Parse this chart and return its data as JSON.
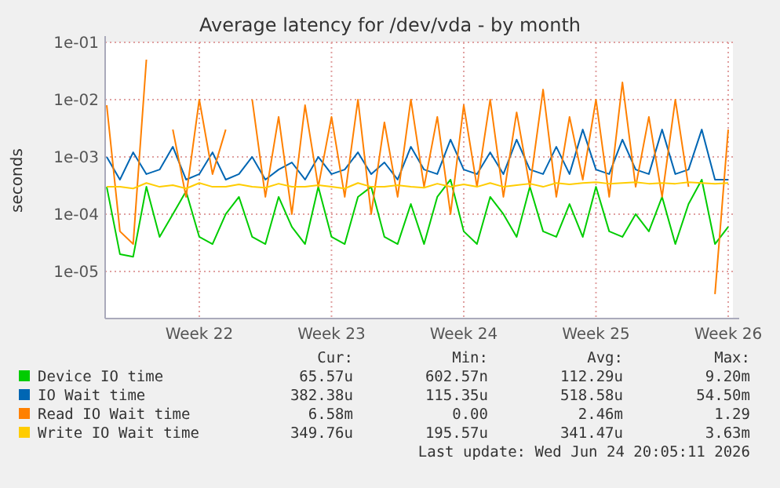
{
  "chart_data": {
    "type": "line",
    "title": "Average latency for /dev/vda - by month",
    "ylabel": "seconds",
    "log": true,
    "grid": true,
    "legend": "bottom",
    "marker": "none",
    "line_style": "solid",
    "ylim": [
      1.5e-06,
      0.1
    ],
    "yticks": [
      {
        "value": 0.1,
        "label": "1e-01"
      },
      {
        "value": 0.01,
        "label": "1e-02"
      },
      {
        "value": 0.001,
        "label": "1e-03"
      },
      {
        "value": 0.0001,
        "label": "1e-04"
      },
      {
        "value": 1e-05,
        "label": "1e-05"
      }
    ],
    "categories": [
      null,
      null,
      null,
      null,
      null,
      null,
      null,
      "Week 22",
      null,
      null,
      null,
      null,
      null,
      null,
      null,
      null,
      null,
      "Week 23",
      null,
      null,
      null,
      null,
      null,
      null,
      null,
      null,
      null,
      "Week 24",
      null,
      null,
      null,
      null,
      null,
      null,
      null,
      null,
      null,
      "Week 25",
      null,
      null,
      null,
      null,
      null,
      null,
      null,
      null,
      null,
      "Week 26"
    ],
    "series": [
      {
        "name": "Device IO time",
        "color": "#00cc00",
        "values": [
          0.0003,
          2e-05,
          1.8e-05,
          0.0003,
          4e-05,
          0.0001,
          0.00025,
          4e-05,
          3e-05,
          0.0001,
          0.0002,
          4e-05,
          3e-05,
          0.0002,
          6e-05,
          3e-05,
          0.0003,
          4e-05,
          3e-05,
          0.0002,
          0.0003,
          4e-05,
          3e-05,
          0.00015,
          3e-05,
          0.0002,
          0.0004,
          5e-05,
          3e-05,
          0.0002,
          0.0001,
          4e-05,
          0.0003,
          5e-05,
          4e-05,
          0.00015,
          4e-05,
          0.0003,
          5e-05,
          4e-05,
          0.0001,
          5e-05,
          0.0002,
          3e-05,
          0.00015,
          0.0004,
          3e-05,
          6e-05
        ]
      },
      {
        "name": "IO Wait time",
        "color": "#0066b3",
        "values": [
          0.001,
          0.0004,
          0.0012,
          0.0005,
          0.0006,
          0.0015,
          0.0004,
          0.0005,
          0.0012,
          0.0004,
          0.0005,
          0.001,
          0.0004,
          0.0006,
          0.0008,
          0.0004,
          0.001,
          0.0005,
          0.0006,
          0.0012,
          0.0005,
          0.0008,
          0.0004,
          0.0015,
          0.0006,
          0.0005,
          0.002,
          0.0006,
          0.0005,
          0.0012,
          0.0005,
          0.002,
          0.0006,
          0.0005,
          0.0015,
          0.0005,
          0.003,
          0.0006,
          0.0005,
          0.002,
          0.0006,
          0.0005,
          0.003,
          0.0005,
          0.0006,
          0.003,
          0.0004,
          0.0004
        ]
      },
      {
        "name": "Read IO Wait time",
        "color": "#ff8000",
        "values": [
          0.008,
          5e-05,
          3e-05,
          0.05,
          null,
          0.003,
          0.0002,
          0.01,
          0.0005,
          0.003,
          null,
          0.01,
          0.0002,
          0.005,
          0.0001,
          0.008,
          0.0003,
          0.005,
          0.0002,
          0.01,
          0.0001,
          0.004,
          0.0002,
          0.01,
          0.0003,
          0.005,
          0.0001,
          0.008,
          0.0003,
          0.01,
          0.0002,
          0.006,
          0.0003,
          0.015,
          0.0002,
          0.005,
          0.0004,
          0.01,
          0.0002,
          0.02,
          0.0003,
          0.005,
          0.0002,
          0.01,
          0.0003,
          null,
          4e-06,
          0.003
        ]
      },
      {
        "name": "Write IO Wait time",
        "color": "#ffcc00",
        "values": [
          0.0003,
          0.0003,
          0.00028,
          0.00035,
          0.0003,
          0.00032,
          0.00028,
          0.00035,
          0.0003,
          0.0003,
          0.00033,
          0.0003,
          0.00029,
          0.00034,
          0.0003,
          0.0003,
          0.00032,
          0.0003,
          0.00028,
          0.00035,
          0.0003,
          0.0003,
          0.00032,
          0.0003,
          0.00029,
          0.00034,
          0.0003,
          0.00033,
          0.0003,
          0.00035,
          0.0003,
          0.00032,
          0.00034,
          0.0003,
          0.00035,
          0.00033,
          0.00035,
          0.00036,
          0.00034,
          0.00035,
          0.00036,
          0.00034,
          0.00035,
          0.00034,
          0.00036,
          0.00035,
          0.00034,
          0.00035
        ]
      }
    ],
    "annotations": [
      "Cur:",
      "Min:",
      "Avg:",
      "Max:",
      "65.57u",
      "602.57n",
      "112.29u",
      "9.20m",
      "382.38u",
      "115.35u",
      "518.58u",
      "54.50m",
      "6.58m",
      "0.00",
      "2.46m",
      "1.29",
      "349.76u",
      "195.57u",
      "341.47u",
      "3.63m",
      "Last update: Wed Jun 24 20:05:11 2026"
    ]
  }
}
